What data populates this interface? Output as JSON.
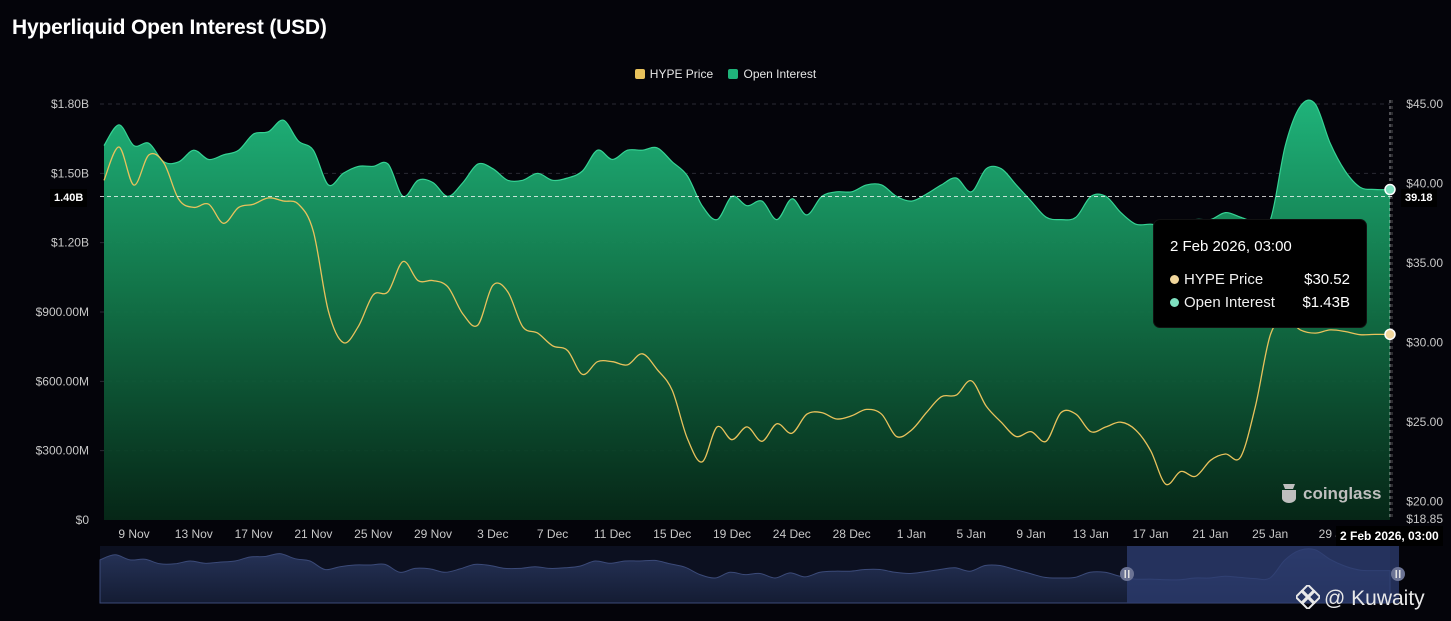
{
  "page_title": "Hyperliquid Open Interest (USD)",
  "colors": {
    "price": "#e8c25c",
    "oi": "#1fb37a",
    "background": "#04040a"
  },
  "legend": [
    {
      "label": "HYPE Price",
      "color": "#e8c25c"
    },
    {
      "label": "Open Interest",
      "color": "#1fb37a"
    }
  ],
  "tooltip": {
    "title": "2 Feb 2026, 03:00",
    "rows": [
      {
        "label": "HYPE Price",
        "value": "$30.52",
        "color": "#f2d79c"
      },
      {
        "label": "Open Interest",
        "value": "$1.43B",
        "color": "#7fe0c0"
      }
    ]
  },
  "crosshair": {
    "left_label": "1.40B",
    "right_label": "39.18",
    "x_label": "2 Feb 2026, 03:00"
  },
  "watermark": "coinglass",
  "credit": "@ Kuwaity",
  "chart_data": {
    "type": "area",
    "title": "Hyperliquid Open Interest (USD)",
    "x_tick_labels": [
      "9 Nov",
      "13 Nov",
      "17 Nov",
      "21 Nov",
      "25 Nov",
      "29 Nov",
      "3 Dec",
      "7 Dec",
      "11 Dec",
      "15 Dec",
      "19 Dec",
      "24 Dec",
      "28 Dec",
      "1 Jan",
      "5 Jan",
      "9 Jan",
      "13 Jan",
      "17 Jan",
      "21 Jan",
      "25 Jan",
      "29 J"
    ],
    "y_left": {
      "ticks": [
        "$0",
        "$300.00M",
        "$600.00M",
        "$900.00M",
        "$1.20B",
        "$1.50B",
        "$1.80B"
      ],
      "ylim": [
        0,
        1800000000
      ]
    },
    "y_right": {
      "ticks": [
        "$18.85",
        "$20.00",
        "$25.00",
        "$30.00",
        "$35.00",
        "$40.00",
        "$45.00"
      ],
      "ylim": [
        18.85,
        45
      ]
    },
    "grid": true,
    "legend_position": "top-center",
    "x_index_range": [
      0,
      86
    ],
    "series": [
      {
        "name": "Open Interest",
        "axis": "left",
        "values": [
          1.62,
          1.71,
          1.62,
          1.63,
          1.55,
          1.55,
          1.6,
          1.56,
          1.58,
          1.6,
          1.67,
          1.68,
          1.73,
          1.64,
          1.6,
          1.45,
          1.5,
          1.53,
          1.53,
          1.54,
          1.4,
          1.47,
          1.46,
          1.4,
          1.46,
          1.54,
          1.52,
          1.47,
          1.47,
          1.5,
          1.47,
          1.48,
          1.51,
          1.6,
          1.56,
          1.6,
          1.6,
          1.61,
          1.55,
          1.49,
          1.36,
          1.3,
          1.4,
          1.36,
          1.38,
          1.3,
          1.39,
          1.32,
          1.4,
          1.42,
          1.42,
          1.45,
          1.45,
          1.4,
          1.38,
          1.41,
          1.45,
          1.48,
          1.42,
          1.52,
          1.52,
          1.45,
          1.38,
          1.31,
          1.3,
          1.31,
          1.4,
          1.4,
          1.33,
          1.28,
          1.28,
          1.27,
          1.27,
          1.3,
          1.3,
          1.33,
          1.31,
          1.29,
          1.3,
          1.62,
          1.79,
          1.8,
          1.63,
          1.51,
          1.44,
          1.43,
          1.43
        ]
      },
      {
        "name": "HYPE Price",
        "axis": "right",
        "values": [
          40.2,
          42.3,
          39.9,
          41.8,
          41.3,
          39.0,
          38.5,
          38.7,
          37.5,
          38.5,
          38.7,
          39.1,
          38.9,
          38.7,
          37.0,
          32.0,
          30.0,
          31.0,
          33.0,
          33.2,
          35.1,
          33.9,
          33.9,
          33.5,
          31.8,
          31.1,
          33.6,
          33.2,
          31.0,
          30.6,
          29.8,
          29.5,
          28.0,
          28.8,
          28.8,
          28.6,
          29.3,
          28.3,
          27.0,
          24.0,
          22.5,
          24.7,
          23.9,
          24.7,
          23.8,
          24.9,
          24.3,
          25.5,
          25.6,
          25.2,
          25.4,
          25.8,
          25.5,
          24.1,
          24.5,
          25.6,
          26.6,
          26.7,
          27.6,
          26.0,
          25.0,
          24.1,
          24.4,
          23.8,
          25.6,
          25.5,
          24.4,
          24.7,
          25.0,
          24.5,
          23.2,
          21.1,
          21.9,
          21.6,
          22.6,
          23.0,
          22.8,
          26.0,
          30.5,
          31.5,
          30.8,
          30.6,
          30.8,
          30.7,
          30.5,
          30.52,
          30.52
        ]
      }
    ]
  }
}
